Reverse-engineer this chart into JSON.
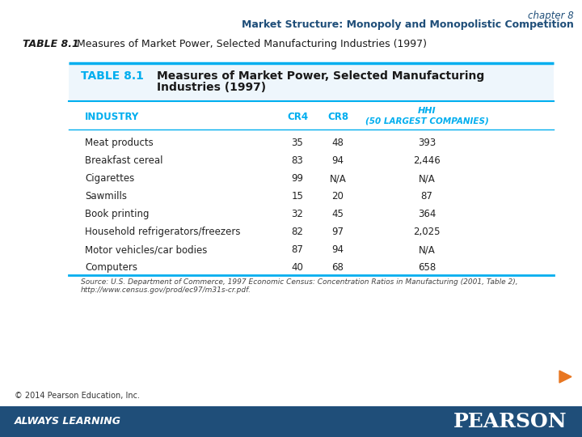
{
  "chapter_text": "chapter 8",
  "subtitle_text": "Market Structure: Monopoly and Monopolistic Competition",
  "caption_bold": "TABLE 8.1",
  "caption_rest": " Measures of Market Power, Selected Manufacturing Industries (1997)",
  "table_title_label": "TABLE 8.1",
  "table_title_main": "Measures of Market Power, Selected Manufacturing",
  "table_title_sub": "Industries (1997)",
  "rows": [
    [
      "Meat products",
      "35",
      "48",
      "393"
    ],
    [
      "Breakfast cereal",
      "83",
      "94",
      "2,446"
    ],
    [
      "Cigarettes",
      "99",
      "N/A",
      "N/A"
    ],
    [
      "Sawmills",
      "15",
      "20",
      "87"
    ],
    [
      "Book printing",
      "32",
      "45",
      "364"
    ],
    [
      "Household refrigerators/freezers",
      "82",
      "97",
      "2,025"
    ],
    [
      "Motor vehicles/car bodies",
      "87",
      "94",
      "N/A"
    ],
    [
      "Computers",
      "40",
      "68",
      "658"
    ]
  ],
  "source_line1": "Source: U.S. Department of Commerce, 1997 Economic Census: Concentration Ratios in Manufacturing (2001, Table 2),",
  "source_line2": "http://www.census.gov/prod/ec97/m31s-cr.pdf.",
  "footer_text": "© 2014 Pearson Education, Inc.",
  "always_learning": "ALWAYS LEARNING",
  "pearson_text": "PEARSON",
  "header_color": "#1F4E79",
  "table_header_color": "#00AEEF",
  "rule_color": "#00AEEF",
  "footer_bar_color": "#1F4E79",
  "background_color": "#FFFFFF",
  "title_bg_color": "#EEF6FC"
}
